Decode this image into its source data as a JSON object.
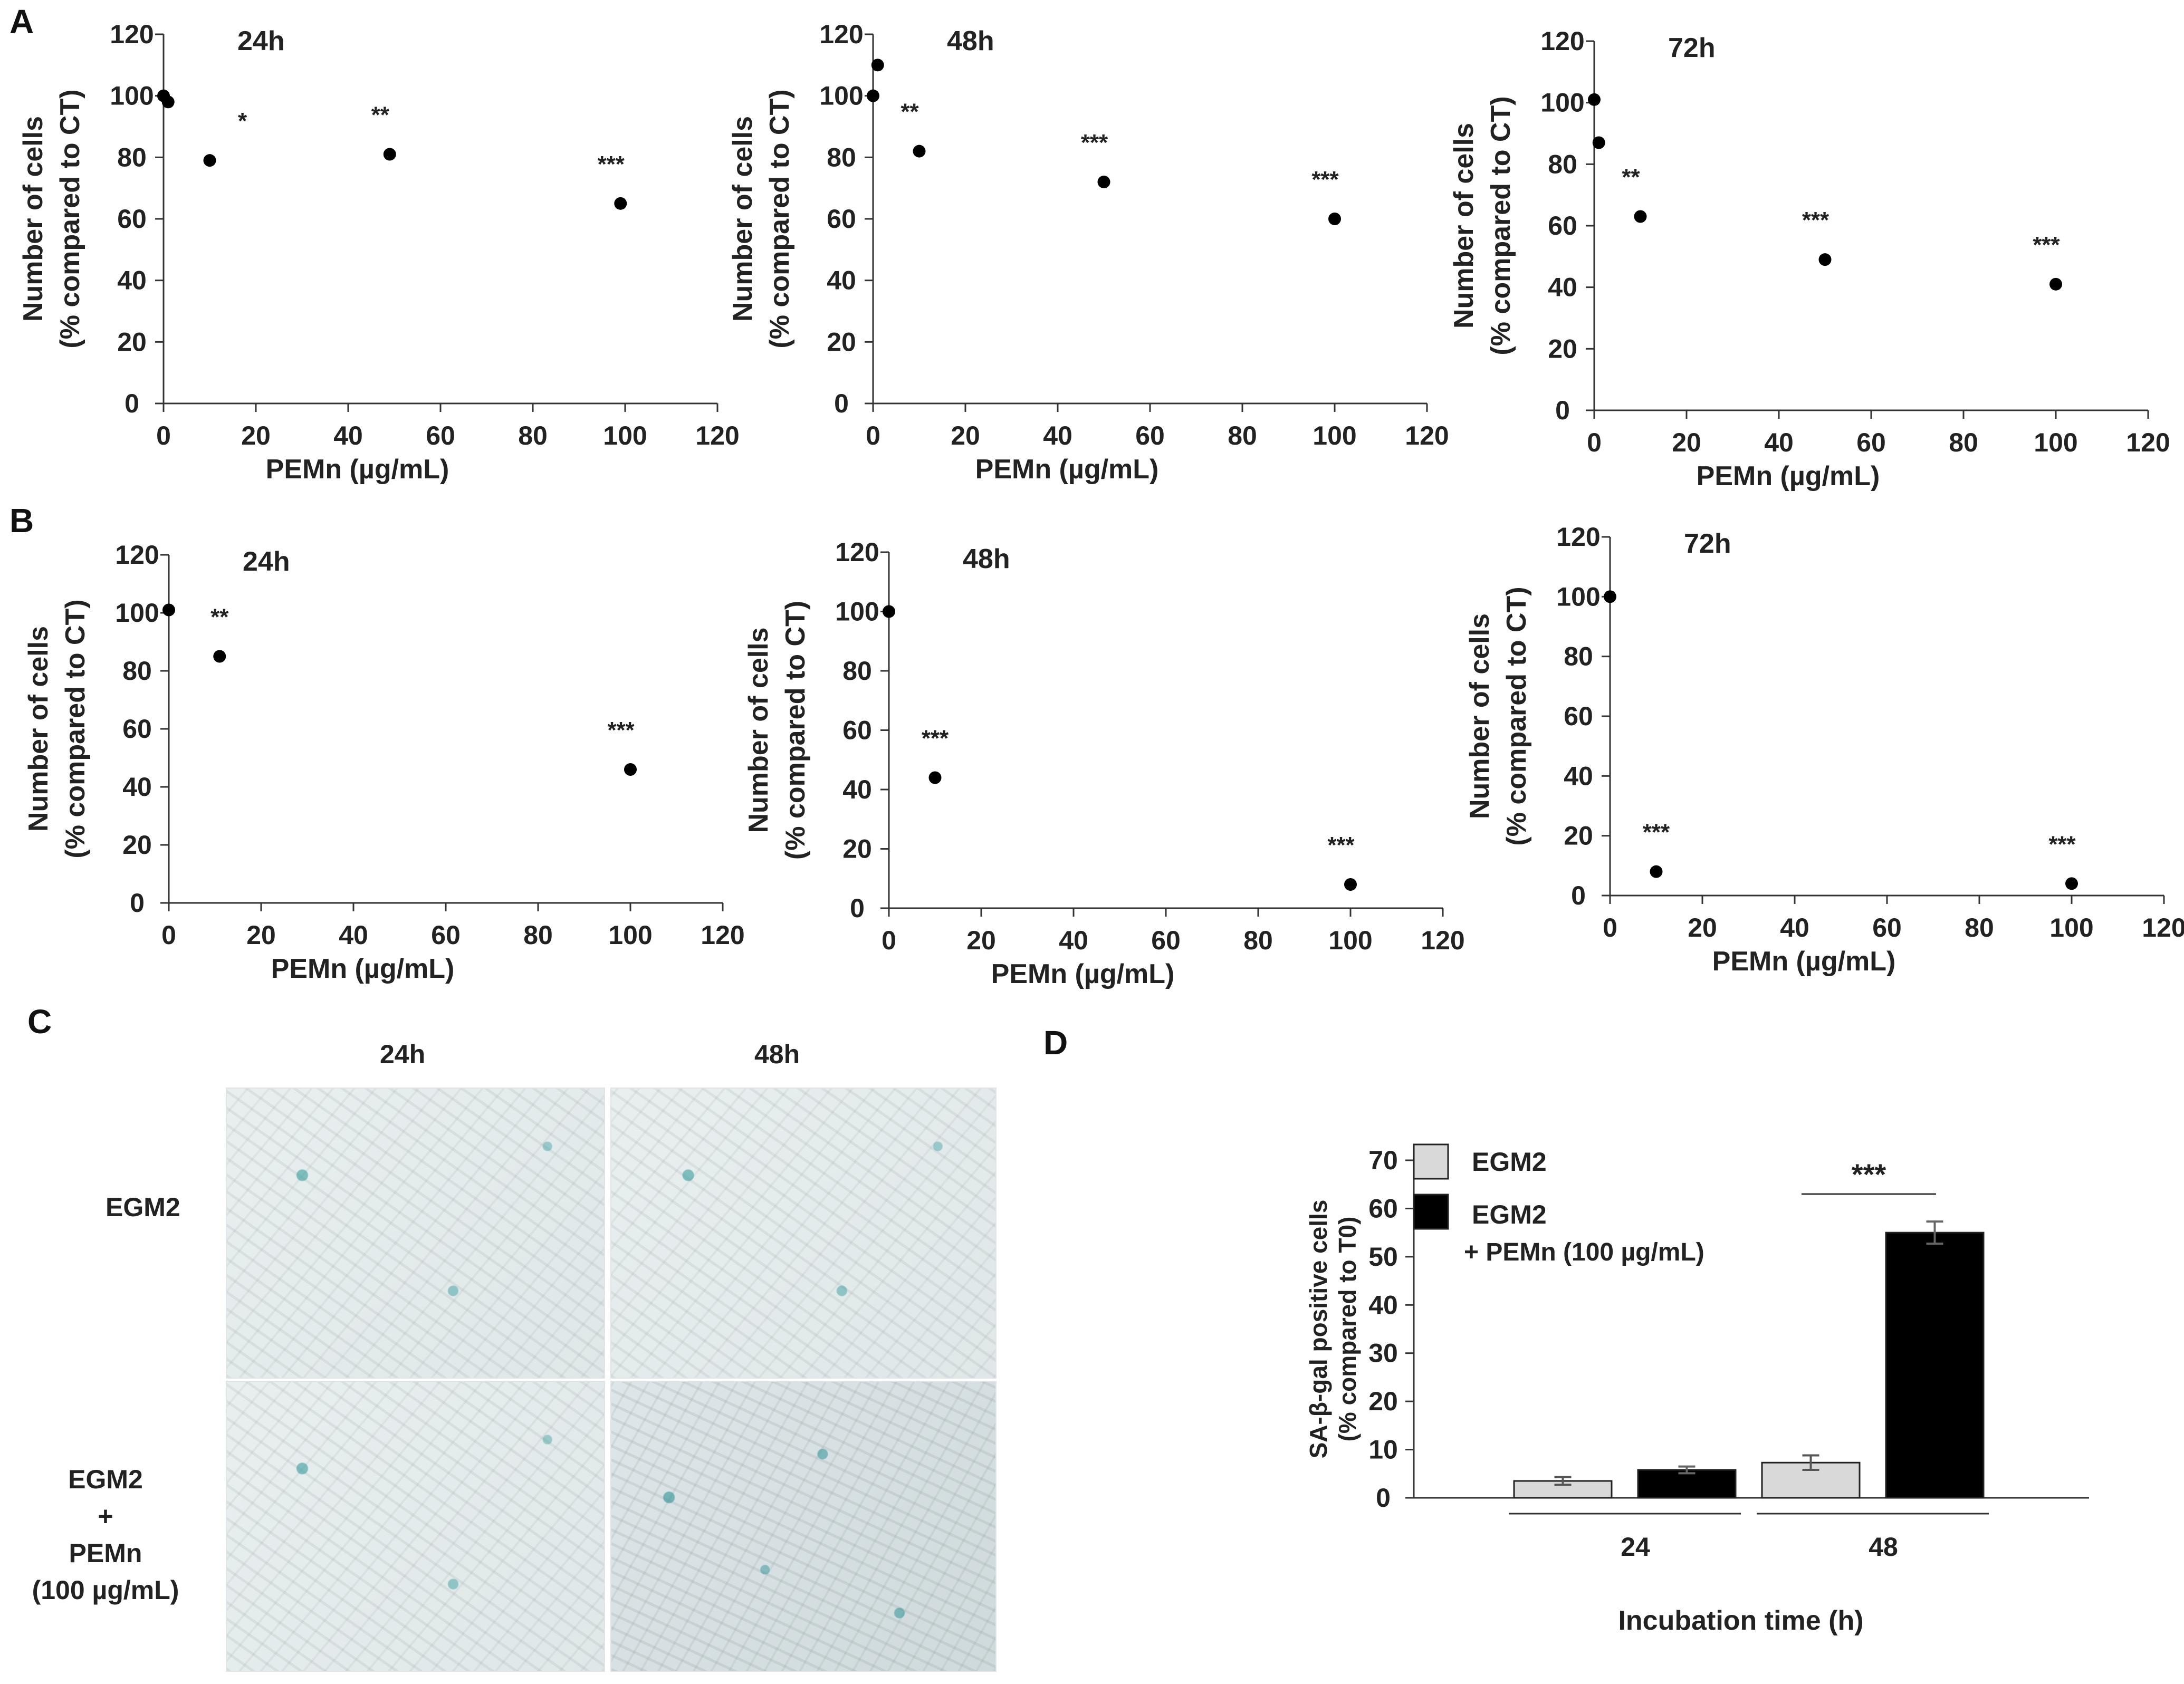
{
  "panels": {
    "A": "A",
    "B": "B",
    "C": "C",
    "D": "D"
  },
  "chart_data": [
    {
      "id": "A-24h",
      "type": "scatter",
      "title": "24h",
      "xlabel": "PEMn (µg/mL)",
      "ylabel": "Number of  cells",
      "ylabel2": "(% compared to CT)",
      "xlim": [
        0,
        120
      ],
      "ylim": [
        0,
        120
      ],
      "xticks": [
        "0",
        "20",
        "40",
        "60",
        "80",
        "100",
        "120"
      ],
      "yticks": [
        "0",
        "20",
        "40",
        "60",
        "80",
        "100",
        "120"
      ],
      "points": [
        {
          "x": 0,
          "y": 100,
          "label": ""
        },
        {
          "x": 1,
          "y": 98,
          "label": ""
        },
        {
          "x": 10,
          "y": 79,
          "label": "*"
        },
        {
          "x": 49,
          "y": 81,
          "label": "**"
        },
        {
          "x": 99,
          "y": 65,
          "label": "***"
        }
      ]
    },
    {
      "id": "A-48h",
      "type": "scatter",
      "title": "48h",
      "xlabel": "PEMn (µg/mL)",
      "ylabel": "Number of  cells",
      "ylabel2": "(% compared to CT)",
      "xlim": [
        0,
        120
      ],
      "ylim": [
        0,
        120
      ],
      "xticks": [
        "0",
        "20",
        "40",
        "60",
        "80",
        "100",
        "120"
      ],
      "yticks": [
        "0",
        "20",
        "40",
        "60",
        "80",
        "100",
        "120"
      ],
      "points": [
        {
          "x": 0,
          "y": 100,
          "label": ""
        },
        {
          "x": 1,
          "y": 110,
          "label": ""
        },
        {
          "x": 10,
          "y": 82,
          "label": "**"
        },
        {
          "x": 50,
          "y": 72,
          "label": "***"
        },
        {
          "x": 100,
          "y": 60,
          "label": "***"
        }
      ]
    },
    {
      "id": "A-72h",
      "type": "scatter",
      "title": "72h",
      "xlabel": "PEMn (µg/mL)",
      "ylabel": "Number of  cells",
      "ylabel2": "(% compared to CT)",
      "xlim": [
        0,
        120
      ],
      "ylim": [
        0,
        120
      ],
      "xticks": [
        "0",
        "20",
        "40",
        "60",
        "80",
        "100",
        "120"
      ],
      "yticks": [
        "0",
        "20",
        "40",
        "60",
        "80",
        "100",
        "120"
      ],
      "points": [
        {
          "x": 0,
          "y": 101,
          "label": ""
        },
        {
          "x": 1,
          "y": 87,
          "label": ""
        },
        {
          "x": 10,
          "y": 63,
          "label": "**"
        },
        {
          "x": 50,
          "y": 49,
          "label": "***"
        },
        {
          "x": 100,
          "y": 41,
          "label": "***"
        }
      ]
    },
    {
      "id": "B-24h",
      "type": "scatter",
      "title": "24h",
      "xlabel": "PEMn (µg/mL)",
      "ylabel": "Number of  cells",
      "ylabel2": "(% compared to CT)",
      "xlim": [
        0,
        120
      ],
      "ylim": [
        0,
        120
      ],
      "xticks": [
        "0",
        "20",
        "40",
        "60",
        "80",
        "100",
        "120"
      ],
      "yticks": [
        "0",
        "20",
        "40",
        "60",
        "80",
        "100",
        "120"
      ],
      "points": [
        {
          "x": 0,
          "y": 101,
          "label": ""
        },
        {
          "x": 11,
          "y": 85,
          "label": "**"
        },
        {
          "x": 100,
          "y": 46,
          "label": "***"
        }
      ]
    },
    {
      "id": "B-48h",
      "type": "scatter",
      "title": "48h",
      "xlabel": "PEMn (µg/mL)",
      "ylabel": "Number of  cells",
      "ylabel2": "(% compared to CT)",
      "xlim": [
        0,
        120
      ],
      "ylim": [
        0,
        120
      ],
      "xticks": [
        "0",
        "20",
        "40",
        "60",
        "80",
        "100",
        "120"
      ],
      "yticks": [
        "0",
        "20",
        "40",
        "60",
        "80",
        "100",
        "120"
      ],
      "points": [
        {
          "x": 0,
          "y": 100,
          "label": ""
        },
        {
          "x": 10,
          "y": 44,
          "label": "***"
        },
        {
          "x": 100,
          "y": 8,
          "label": "***"
        }
      ]
    },
    {
      "id": "B-72h",
      "type": "scatter",
      "title": "72h",
      "xlabel": "PEMn (µg/mL)",
      "ylabel": "Number of  cells",
      "ylabel2": "(% compared to CT)",
      "xlim": [
        0,
        120
      ],
      "ylim": [
        0,
        120
      ],
      "xticks": [
        "0",
        "20",
        "40",
        "60",
        "80",
        "100",
        "120"
      ],
      "yticks": [
        "0",
        "20",
        "40",
        "60",
        "80",
        "100",
        "120"
      ],
      "xtick_labels_shown": [
        "0",
        "20",
        "40",
        "60",
        "80",
        "100",
        "120"
      ],
      "ytick_labels_shown": [
        "0",
        "20",
        "40",
        "60",
        "80",
        "100",
        "120"
      ],
      "points": [
        {
          "x": 0,
          "y": 100,
          "label": ""
        },
        {
          "x": 10,
          "y": 8,
          "label": "***"
        },
        {
          "x": 100,
          "y": 4,
          "label": "***"
        }
      ]
    },
    {
      "id": "D",
      "type": "bar",
      "xlabel": "Incubation time (h)",
      "ylabel": "SA-β-gal positive cells",
      "ylabel2": "(% compared to T0)",
      "ylim": [
        0,
        70
      ],
      "yticks": [
        "0",
        "10",
        "20",
        "30",
        "40",
        "50",
        "60",
        "70"
      ],
      "categories": [
        "24",
        "48"
      ],
      "series": [
        {
          "name": "EGM2",
          "color": "#d9d9d9",
          "values": [
            3.5,
            7.3
          ],
          "errors": [
            0.8,
            1.5
          ]
        },
        {
          "name": "EGM2",
          "name2": "+ PEMn (100 µg/mL)",
          "color": "#000000",
          "values": [
            5.8,
            55
          ],
          "errors": [
            0.7,
            2.3
          ]
        }
      ],
      "significance": {
        "category": "48",
        "label": "***"
      }
    }
  ],
  "micrographs": {
    "col_labels": [
      "24h",
      "48h"
    ],
    "row_labels": [
      [
        "EGM2"
      ],
      [
        "EGM2",
        "+",
        "PEMn",
        "(100 µg/mL)"
      ]
    ]
  }
}
